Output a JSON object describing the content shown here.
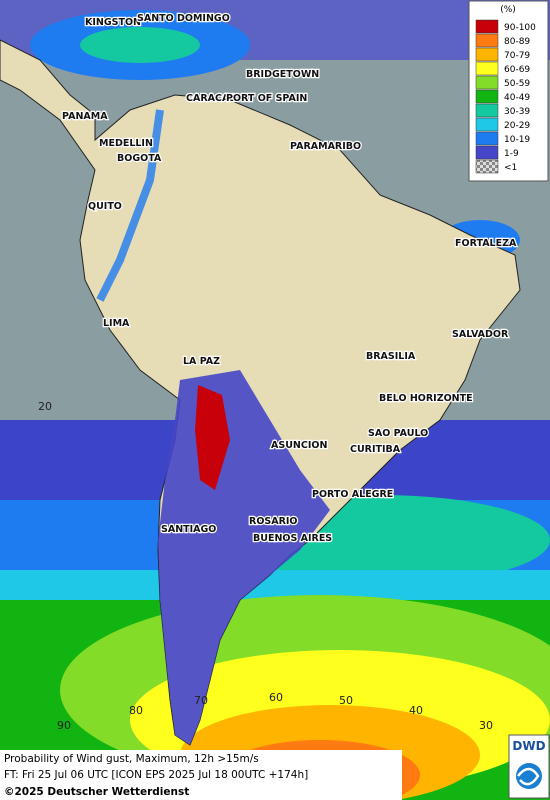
{
  "legend": {
    "title": "(%)",
    "items": [
      {
        "label": "90-100",
        "color": "#c8000a"
      },
      {
        "label": "80-89",
        "color": "#ff7a10"
      },
      {
        "label": "70-79",
        "color": "#ffb400"
      },
      {
        "label": "60-69",
        "color": "#ffff1e"
      },
      {
        "label": "50-59",
        "color": "#82dc28"
      },
      {
        "label": "40-49",
        "color": "#12b412"
      },
      {
        "label": "30-39",
        "color": "#14c8a0"
      },
      {
        "label": "20-29",
        "color": "#1ec8e6"
      },
      {
        "label": "10-19",
        "color": "#1e7cf0"
      },
      {
        "label": "1-9",
        "color": "#4646c8"
      },
      {
        "label": "<1",
        "color": "#9a9a9a"
      }
    ]
  },
  "cities": [
    "KINGSTON",
    "SANTO DOMINGO",
    "BRIDGETOWN",
    "CARACAS",
    "PORT OF SPAIN",
    "PANAMA",
    "MEDELLIN",
    "BOGOTA",
    "PARAMARIBO",
    "QUITO",
    "FORTALEZA",
    "LIMA",
    "SALVADOR",
    "LA PAZ",
    "BRASILIA",
    "BELO HORIZONTE",
    "ASUNCION",
    "SAO PAULO",
    "CURITIBA",
    "PORTO ALEGRE",
    "ROSARIO",
    "SANTIAGO",
    "BUENOS AIRES"
  ],
  "graticule": {
    "lat_labels": [
      20
    ],
    "lon_labels": [
      90,
      80,
      70,
      60,
      50,
      40,
      30
    ]
  },
  "footer": {
    "line1": "Probability of Wind gust, Maximum, 12h >15m/s",
    "line2": "FT: Fri 25 Jul 06 UTC [ICON EPS 2025 Jul 18 00UTC +174h]",
    "copyright": "©2025 Deutscher Wetterdienst"
  },
  "logo": "DWD"
}
